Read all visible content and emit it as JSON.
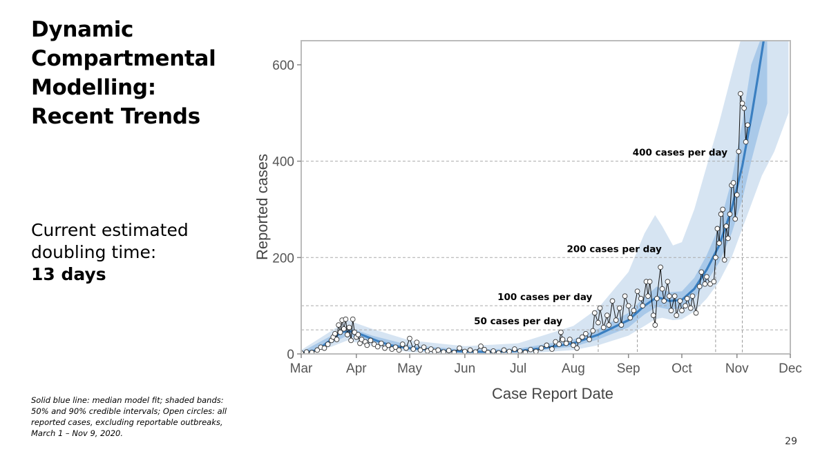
{
  "slide": {
    "title_lines": [
      "Dynamic",
      "Compartmental",
      "Modelling:",
      "Recent Trends"
    ],
    "doubling_lines": [
      "Current estimated",
      "doubling time:"
    ],
    "doubling_value": "13 days",
    "caption": "Solid blue line: median model fit; shaded bands: 50% and 90% credible intervals; Open circles: all reported cases, excluding reportable outbreaks, March 1 – Nov 9, 2020.",
    "page_number": "29"
  },
  "colors": {
    "band_90": "#d6e4f2",
    "band_50": "#a9c9e9",
    "median_line": "#3a7fc1",
    "observed_line": "#111111",
    "circle_fill": "#ffffff",
    "grid": "#aaaaaa",
    "frame": "#bbbbbb"
  },
  "chart_data": {
    "type": "line",
    "xlabel": "Case Report Date",
    "ylabel": "Reported cases",
    "xlim": [
      "2020-03-01",
      "2020-12-01"
    ],
    "ylim": [
      0,
      650
    ],
    "x_ticks": [
      {
        "date": "2020-03-01",
        "label": "Mar"
      },
      {
        "date": "2020-04-01",
        "label": "Apr"
      },
      {
        "date": "2020-05-01",
        "label": "May"
      },
      {
        "date": "2020-06-01",
        "label": "Jun"
      },
      {
        "date": "2020-07-01",
        "label": "Jul"
      },
      {
        "date": "2020-08-01",
        "label": "Aug"
      },
      {
        "date": "2020-09-01",
        "label": "Sep"
      },
      {
        "date": "2020-10-01",
        "label": "Oct"
      },
      {
        "date": "2020-11-01",
        "label": "Nov"
      },
      {
        "date": "2020-12-01",
        "label": "Dec"
      }
    ],
    "y_ticks": [
      0,
      200,
      400,
      600
    ],
    "reference_lines": [
      {
        "value": 50,
        "label": "50 cases per day",
        "crossing_date": "2020-08-15"
      },
      {
        "value": 100,
        "label": "100 cases per day",
        "crossing_date": "2020-09-06"
      },
      {
        "value": 200,
        "label": "200 cases per day",
        "crossing_date": "2020-10-20"
      },
      {
        "value": 400,
        "label": "400 cases per day",
        "crossing_date": "2020-11-04"
      }
    ],
    "median_fit": [
      [
        "2020-03-01",
        2
      ],
      [
        "2020-03-10",
        8
      ],
      [
        "2020-03-18",
        30
      ],
      [
        "2020-03-24",
        46
      ],
      [
        "2020-03-29",
        47
      ],
      [
        "2020-04-04",
        40
      ],
      [
        "2020-04-12",
        28
      ],
      [
        "2020-04-20",
        18
      ],
      [
        "2020-05-01",
        12
      ],
      [
        "2020-05-15",
        8
      ],
      [
        "2020-06-01",
        5
      ],
      [
        "2020-06-15",
        4
      ],
      [
        "2020-07-01",
        6
      ],
      [
        "2020-07-15",
        12
      ],
      [
        "2020-08-01",
        22
      ],
      [
        "2020-08-15",
        40
      ],
      [
        "2020-09-01",
        70
      ],
      [
        "2020-09-10",
        100
      ],
      [
        "2020-09-17",
        118
      ],
      [
        "2020-09-24",
        110
      ],
      [
        "2020-10-01",
        112
      ],
      [
        "2020-10-08",
        135
      ],
      [
        "2020-10-15",
        175
      ],
      [
        "2020-10-22",
        225
      ],
      [
        "2020-10-29",
        300
      ],
      [
        "2020-11-04",
        390
      ],
      [
        "2020-11-09",
        490
      ],
      [
        "2020-11-13",
        580
      ],
      [
        "2020-11-16",
        650
      ]
    ],
    "band_50": [
      [
        "2020-03-01",
        0,
        4
      ],
      [
        "2020-03-18",
        22,
        38
      ],
      [
        "2020-03-27",
        38,
        56
      ],
      [
        "2020-04-10",
        24,
        38
      ],
      [
        "2020-05-01",
        8,
        18
      ],
      [
        "2020-06-01",
        2,
        9
      ],
      [
        "2020-07-01",
        3,
        11
      ],
      [
        "2020-08-01",
        15,
        30
      ],
      [
        "2020-08-15",
        30,
        52
      ],
      [
        "2020-09-01",
        55,
        85
      ],
      [
        "2020-09-10",
        82,
        118
      ],
      [
        "2020-09-17",
        98,
        140
      ],
      [
        "2020-09-24",
        92,
        128
      ],
      [
        "2020-10-01",
        95,
        130
      ],
      [
        "2020-10-08",
        115,
        158
      ],
      [
        "2020-10-15",
        150,
        205
      ],
      [
        "2020-10-22",
        190,
        265
      ],
      [
        "2020-10-29",
        250,
        360
      ],
      [
        "2020-11-04",
        320,
        480
      ],
      [
        "2020-11-09",
        400,
        600
      ],
      [
        "2020-11-14",
        470,
        650
      ],
      [
        "2020-11-18",
        520,
        650
      ]
    ],
    "band_90": [
      [
        "2020-03-01",
        0,
        8
      ],
      [
        "2020-03-18",
        15,
        48
      ],
      [
        "2020-03-27",
        28,
        70
      ],
      [
        "2020-04-10",
        16,
        52
      ],
      [
        "2020-05-01",
        4,
        28
      ],
      [
        "2020-06-01",
        0,
        16
      ],
      [
        "2020-07-01",
        0,
        22
      ],
      [
        "2020-08-01",
        8,
        58
      ],
      [
        "2020-08-15",
        18,
        95
      ],
      [
        "2020-09-01",
        38,
        170
      ],
      [
        "2020-09-10",
        58,
        250
      ],
      [
        "2020-09-16",
        72,
        288
      ],
      [
        "2020-09-20",
        75,
        265
      ],
      [
        "2020-09-26",
        70,
        225
      ],
      [
        "2020-10-01",
        72,
        232
      ],
      [
        "2020-10-08",
        88,
        300
      ],
      [
        "2020-10-15",
        115,
        390
      ],
      [
        "2020-10-22",
        150,
        480
      ],
      [
        "2020-10-29",
        200,
        580
      ],
      [
        "2020-11-03",
        250,
        650
      ],
      [
        "2020-11-09",
        310,
        650
      ],
      [
        "2020-11-15",
        370,
        650
      ],
      [
        "2020-11-22",
        420,
        650
      ],
      [
        "2020-11-30",
        500,
        650
      ]
    ],
    "observed": [
      [
        "2020-03-01",
        2
      ],
      [
        "2020-03-04",
        4
      ],
      [
        "2020-03-07",
        3
      ],
      [
        "2020-03-10",
        8
      ],
      [
        "2020-03-12",
        14
      ],
      [
        "2020-03-14",
        12
      ],
      [
        "2020-03-16",
        20
      ],
      [
        "2020-03-18",
        28
      ],
      [
        "2020-03-19",
        35
      ],
      [
        "2020-03-20",
        42
      ],
      [
        "2020-03-21",
        30
      ],
      [
        "2020-03-22",
        60
      ],
      [
        "2020-03-23",
        45
      ],
      [
        "2020-03-24",
        70
      ],
      [
        "2020-03-25",
        52
      ],
      [
        "2020-03-26",
        72
      ],
      [
        "2020-03-27",
        40
      ],
      [
        "2020-03-28",
        55
      ],
      [
        "2020-03-29",
        28
      ],
      [
        "2020-03-30",
        72
      ],
      [
        "2020-03-31",
        45
      ],
      [
        "2020-04-01",
        35
      ],
      [
        "2020-04-02",
        40
      ],
      [
        "2020-04-03",
        22
      ],
      [
        "2020-04-04",
        30
      ],
      [
        "2020-04-06",
        25
      ],
      [
        "2020-04-07",
        18
      ],
      [
        "2020-04-09",
        28
      ],
      [
        "2020-04-11",
        20
      ],
      [
        "2020-04-13",
        15
      ],
      [
        "2020-04-15",
        22
      ],
      [
        "2020-04-17",
        12
      ],
      [
        "2020-04-19",
        18
      ],
      [
        "2020-04-21",
        10
      ],
      [
        "2020-04-23",
        14
      ],
      [
        "2020-04-25",
        8
      ],
      [
        "2020-04-27",
        20
      ],
      [
        "2020-04-29",
        12
      ],
      [
        "2020-05-01",
        32
      ],
      [
        "2020-05-03",
        10
      ],
      [
        "2020-05-05",
        24
      ],
      [
        "2020-05-07",
        8
      ],
      [
        "2020-05-09",
        14
      ],
      [
        "2020-05-11",
        6
      ],
      [
        "2020-05-13",
        10
      ],
      [
        "2020-05-15",
        5
      ],
      [
        "2020-05-17",
        8
      ],
      [
        "2020-05-20",
        4
      ],
      [
        "2020-05-23",
        7
      ],
      [
        "2020-05-26",
        3
      ],
      [
        "2020-05-29",
        12
      ],
      [
        "2020-06-01",
        5
      ],
      [
        "2020-06-04",
        8
      ],
      [
        "2020-06-07",
        4
      ],
      [
        "2020-06-10",
        16
      ],
      [
        "2020-06-12",
        9
      ],
      [
        "2020-06-14",
        3
      ],
      [
        "2020-06-17",
        6
      ],
      [
        "2020-06-20",
        2
      ],
      [
        "2020-06-23",
        8
      ],
      [
        "2020-06-26",
        5
      ],
      [
        "2020-06-29",
        10
      ],
      [
        "2020-07-02",
        6
      ],
      [
        "2020-07-05",
        3
      ],
      [
        "2020-07-08",
        9
      ],
      [
        "2020-07-11",
        5
      ],
      [
        "2020-07-14",
        12
      ],
      [
        "2020-07-17",
        18
      ],
      [
        "2020-07-20",
        10
      ],
      [
        "2020-07-22",
        25
      ],
      [
        "2020-07-24",
        20
      ],
      [
        "2020-07-25",
        45
      ],
      [
        "2020-07-26",
        30
      ],
      [
        "2020-07-28",
        22
      ],
      [
        "2020-07-30",
        30
      ],
      [
        "2020-08-01",
        18
      ],
      [
        "2020-08-03",
        12
      ],
      [
        "2020-08-04",
        28
      ],
      [
        "2020-08-06",
        35
      ],
      [
        "2020-08-08",
        42
      ],
      [
        "2020-08-10",
        30
      ],
      [
        "2020-08-12",
        48
      ],
      [
        "2020-08-13",
        85
      ],
      [
        "2020-08-15",
        65
      ],
      [
        "2020-08-16",
        95
      ],
      [
        "2020-08-18",
        55
      ],
      [
        "2020-08-20",
        80
      ],
      [
        "2020-08-21",
        60
      ],
      [
        "2020-08-23",
        110
      ],
      [
        "2020-08-25",
        70
      ],
      [
        "2020-08-27",
        95
      ],
      [
        "2020-08-28",
        60
      ],
      [
        "2020-08-30",
        120
      ],
      [
        "2020-09-01",
        100
      ],
      [
        "2020-09-02",
        75
      ],
      [
        "2020-09-04",
        90
      ],
      [
        "2020-09-06",
        130
      ],
      [
        "2020-09-08",
        115
      ],
      [
        "2020-09-09",
        100
      ],
      [
        "2020-09-11",
        150
      ],
      [
        "2020-09-12",
        120
      ],
      [
        "2020-09-13",
        150
      ],
      [
        "2020-09-15",
        80
      ],
      [
        "2020-09-16",
        60
      ],
      [
        "2020-09-17",
        115
      ],
      [
        "2020-09-19",
        180
      ],
      [
        "2020-09-20",
        135
      ],
      [
        "2020-09-21",
        110
      ],
      [
        "2020-09-23",
        150
      ],
      [
        "2020-09-24",
        120
      ],
      [
        "2020-09-25",
        90
      ],
      [
        "2020-09-27",
        120
      ],
      [
        "2020-09-28",
        80
      ],
      [
        "2020-09-30",
        110
      ],
      [
        "2020-10-01",
        90
      ],
      [
        "2020-10-03",
        100
      ],
      [
        "2020-10-04",
        115
      ],
      [
        "2020-10-06",
        95
      ],
      [
        "2020-10-07",
        120
      ],
      [
        "2020-10-09",
        85
      ],
      [
        "2020-10-11",
        140
      ],
      [
        "2020-10-12",
        170
      ],
      [
        "2020-10-14",
        145
      ],
      [
        "2020-10-15",
        160
      ],
      [
        "2020-10-17",
        145
      ],
      [
        "2020-10-19",
        150
      ],
      [
        "2020-10-20",
        200
      ],
      [
        "2020-10-21",
        260
      ],
      [
        "2020-10-22",
        230
      ],
      [
        "2020-10-23",
        290
      ],
      [
        "2020-10-24",
        300
      ],
      [
        "2020-10-25",
        195
      ],
      [
        "2020-10-26",
        265
      ],
      [
        "2020-10-27",
        240
      ],
      [
        "2020-10-28",
        290
      ],
      [
        "2020-10-29",
        350
      ],
      [
        "2020-10-30",
        355
      ],
      [
        "2020-10-31",
        280
      ],
      [
        "2020-11-01",
        330
      ],
      [
        "2020-11-02",
        420
      ],
      [
        "2020-11-03",
        540
      ],
      [
        "2020-11-04",
        520
      ],
      [
        "2020-11-05",
        510
      ],
      [
        "2020-11-06",
        440
      ],
      [
        "2020-11-07",
        475
      ]
    ]
  }
}
